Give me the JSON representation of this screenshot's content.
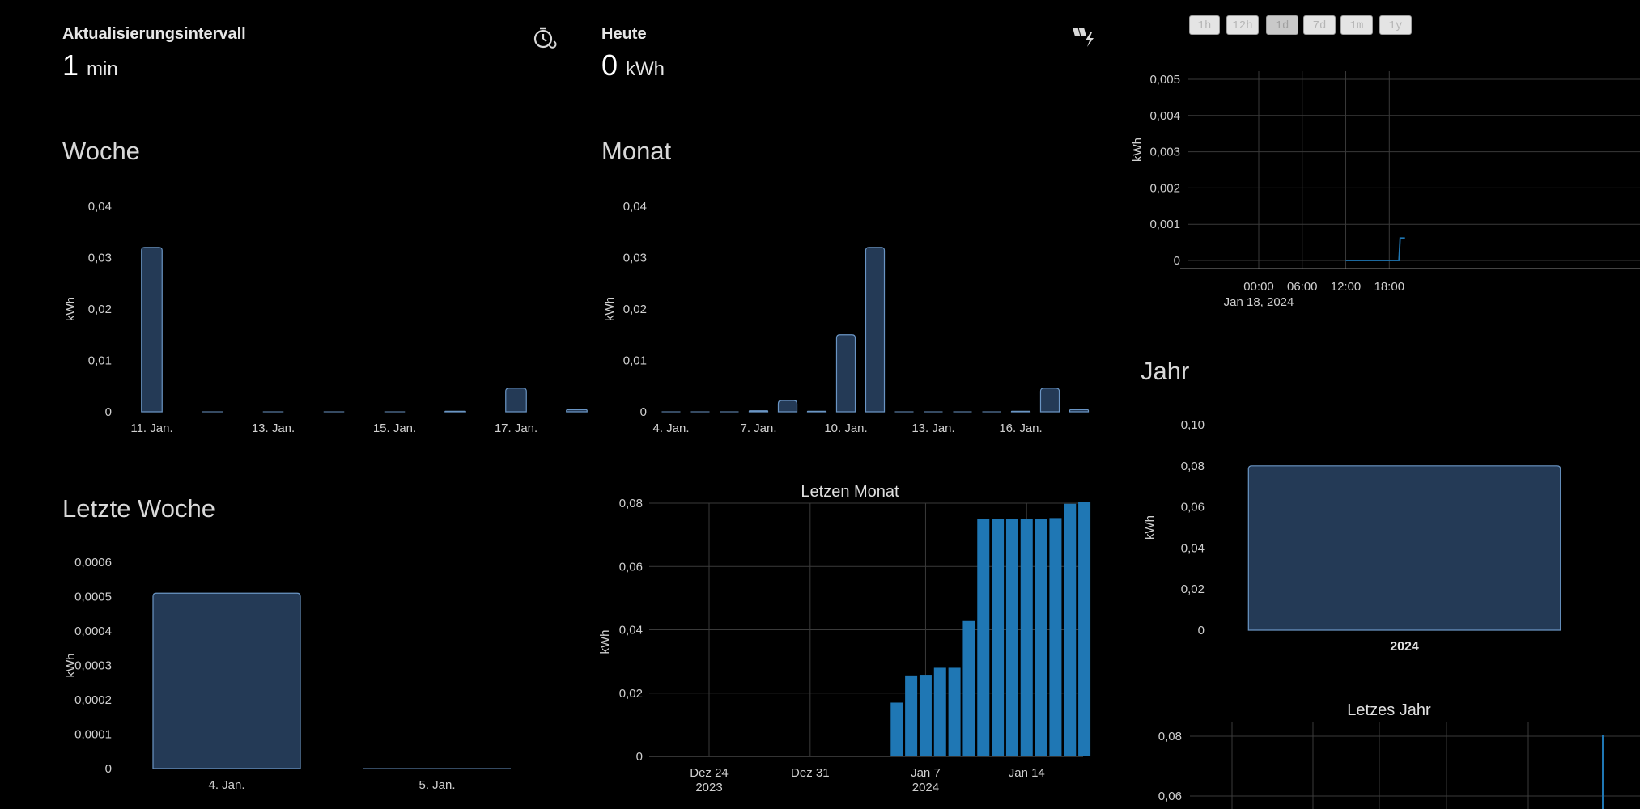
{
  "stats": {
    "interval": {
      "title": "Aktualisierungsintervall",
      "value": "1",
      "unit": "min",
      "icon": "timer-icon"
    },
    "today": {
      "title": "Heute",
      "value": "0",
      "unit": "kWh",
      "icon": "solar-power-icon"
    }
  },
  "cards": {
    "woche": "Woche",
    "monat": "Monat",
    "letzte_woche": "Letzte Woche",
    "jahr": "Jahr"
  },
  "range_buttons": [
    {
      "label": "1h",
      "active": false
    },
    {
      "label": "12h",
      "active": false
    },
    {
      "label": "1d",
      "active": true
    },
    {
      "label": "7d",
      "active": false
    },
    {
      "label": "1m",
      "active": false
    },
    {
      "label": "1y",
      "active": false
    }
  ],
  "colors": {
    "bar_fill": "#243a56",
    "bar_stroke": "#6a95c4",
    "plotly_bar": "#1f77b4",
    "grid": "#3a3a3a"
  },
  "chart_data": [
    {
      "id": "woche",
      "type": "bar",
      "ylabel": "kWh",
      "ylim": [
        0,
        0.04
      ],
      "yticks": [
        "0",
        "0,01",
        "0,02",
        "0,03",
        "0,04"
      ],
      "xticks": [
        "11. Jan.",
        "13. Jan.",
        "15. Jan.",
        "17. Jan."
      ],
      "categories": [
        "11. Jan.",
        "12. Jan.",
        "13. Jan.",
        "14. Jan.",
        "15. Jan.",
        "16. Jan.",
        "17. Jan.",
        "18. Jan."
      ],
      "values": [
        0.032,
        0,
        0,
        0,
        0,
        0.0001,
        0.0046,
        0.0004
      ]
    },
    {
      "id": "monat",
      "type": "bar",
      "ylabel": "kWh",
      "ylim": [
        0,
        0.04
      ],
      "yticks": [
        "0",
        "0,01",
        "0,02",
        "0,03",
        "0,04"
      ],
      "xticks": [
        "4. Jan.",
        "7. Jan.",
        "10. Jan.",
        "13. Jan.",
        "16. Jan."
      ],
      "categories": [
        "4. Jan.",
        "5. Jan.",
        "6. Jan.",
        "7. Jan.",
        "8. Jan.",
        "9. Jan.",
        "10. Jan.",
        "11. Jan.",
        "12. Jan.",
        "13. Jan.",
        "14. Jan.",
        "15. Jan.",
        "16. Jan.",
        "17. Jan.",
        "18. Jan."
      ],
      "values": [
        0,
        0,
        0,
        0.0002,
        0.0022,
        0.0001,
        0.015,
        0.032,
        0,
        0,
        0,
        0,
        0.0001,
        0.0046,
        0.0004
      ]
    },
    {
      "id": "letzte_woche",
      "type": "bar",
      "ylabel": "kWh",
      "ylim": [
        0,
        0.0006
      ],
      "yticks": [
        "0",
        "0,0001",
        "0,0002",
        "0,0003",
        "0,0004",
        "0,0005",
        "0,0006"
      ],
      "categories": [
        "4. Jan.",
        "5. Jan."
      ],
      "values": [
        0.00051,
        0
      ]
    },
    {
      "id": "jahr",
      "type": "bar",
      "ylabel": "kWh",
      "ylim": [
        0,
        0.1
      ],
      "yticks": [
        "0",
        "0,02",
        "0,04",
        "0,06",
        "0,08",
        "0,10"
      ],
      "categories": [
        "2024"
      ],
      "values": [
        0.08
      ]
    },
    {
      "id": "tag",
      "type": "line",
      "ylabel": "kWh",
      "ylim": [
        0,
        0.005
      ],
      "yticks": [
        "0",
        "0,001",
        "0,002",
        "0,003",
        "0,004",
        "0,005"
      ],
      "xticks": [
        "00:00",
        "06:00",
        "12:00",
        "18:00"
      ],
      "xsub": "Jan 18, 2024",
      "x": [
        "12:00",
        "19:20",
        "19:30",
        "20:10"
      ],
      "y": [
        0,
        0,
        0.00062,
        0.00062
      ]
    },
    {
      "id": "letzen_monat",
      "type": "bar",
      "title": "Letzen Monat",
      "ylabel": "kWh",
      "ylim": [
        0,
        0.08
      ],
      "yticks": [
        "0",
        "0,02",
        "0,04",
        "0,06",
        "0,08"
      ],
      "xticks": [
        "Dez 24",
        "Dez 31",
        "Jan 7",
        "Jan 14"
      ],
      "xsub": [
        "2023",
        "",
        "2024",
        ""
      ],
      "x": [
        "Jan 5",
        "Jan 6",
        "Jan 7",
        "Jan 8",
        "Jan 9",
        "Jan 10",
        "Jan 11",
        "Jan 12",
        "Jan 13",
        "Jan 14",
        "Jan 15",
        "Jan 16",
        "Jan 17",
        "Jan 18"
      ],
      "values": [
        0.017,
        0.0256,
        0.0258,
        0.028,
        0.028,
        0.043,
        0.075,
        0.075,
        0.075,
        0.075,
        0.075,
        0.0753,
        0.0798,
        0.0805
      ]
    },
    {
      "id": "letzes_jahr",
      "type": "line",
      "title": "Letzes Jahr",
      "yticks": [
        "0,06",
        "0,08"
      ]
    }
  ]
}
